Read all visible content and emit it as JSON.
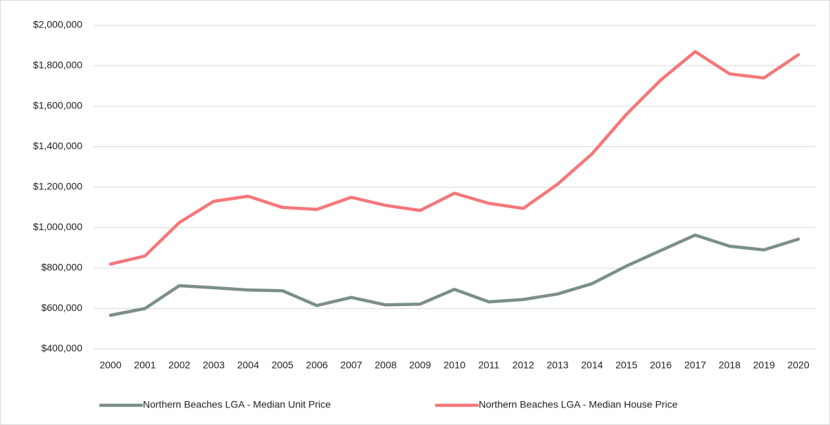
{
  "chart_data": {
    "type": "line",
    "categories": [
      "2000",
      "2001",
      "2002",
      "2003",
      "2004",
      "2005",
      "2006",
      "2007",
      "2008",
      "2009",
      "2010",
      "2011",
      "2012",
      "2013",
      "2014",
      "2015",
      "2016",
      "2017",
      "2018",
      "2019",
      "2020"
    ],
    "series": [
      {
        "name": "Northern Beaches LGA - Median Unit Price",
        "color": "#7b8f88",
        "values": [
          567000,
          600000,
          713000,
          703000,
          692000,
          688000,
          615000,
          655000,
          618000,
          622000,
          695000,
          633000,
          645000,
          672000,
          723000,
          810000,
          887000,
          963000,
          908000,
          890000,
          943000
        ]
      },
      {
        "name": "Northern Beaches LGA - Median House Price",
        "color": "#f4777a",
        "values": [
          820000,
          860000,
          1025000,
          1130000,
          1155000,
          1100000,
          1090000,
          1150000,
          1110000,
          1085000,
          1170000,
          1120000,
          1095000,
          1215000,
          1365000,
          1560000,
          1730000,
          1870000,
          1760000,
          1740000,
          1855000
        ]
      }
    ],
    "ylim": [
      400000,
      2000000
    ],
    "yticks": [
      {
        "value": 400000,
        "label": "$400,000"
      },
      {
        "value": 600000,
        "label": "$600,000"
      },
      {
        "value": 800000,
        "label": "$800,000"
      },
      {
        "value": 1000000,
        "label": "$1,000,000"
      },
      {
        "value": 1200000,
        "label": "$1,200,000"
      },
      {
        "value": 1400000,
        "label": "$1,400,000"
      },
      {
        "value": 1600000,
        "label": "$1,600,000"
      },
      {
        "value": 1800000,
        "label": "$1,800,000"
      },
      {
        "value": 2000000,
        "label": "$2,000,000"
      }
    ],
    "grid": true,
    "legend": "bottom"
  }
}
